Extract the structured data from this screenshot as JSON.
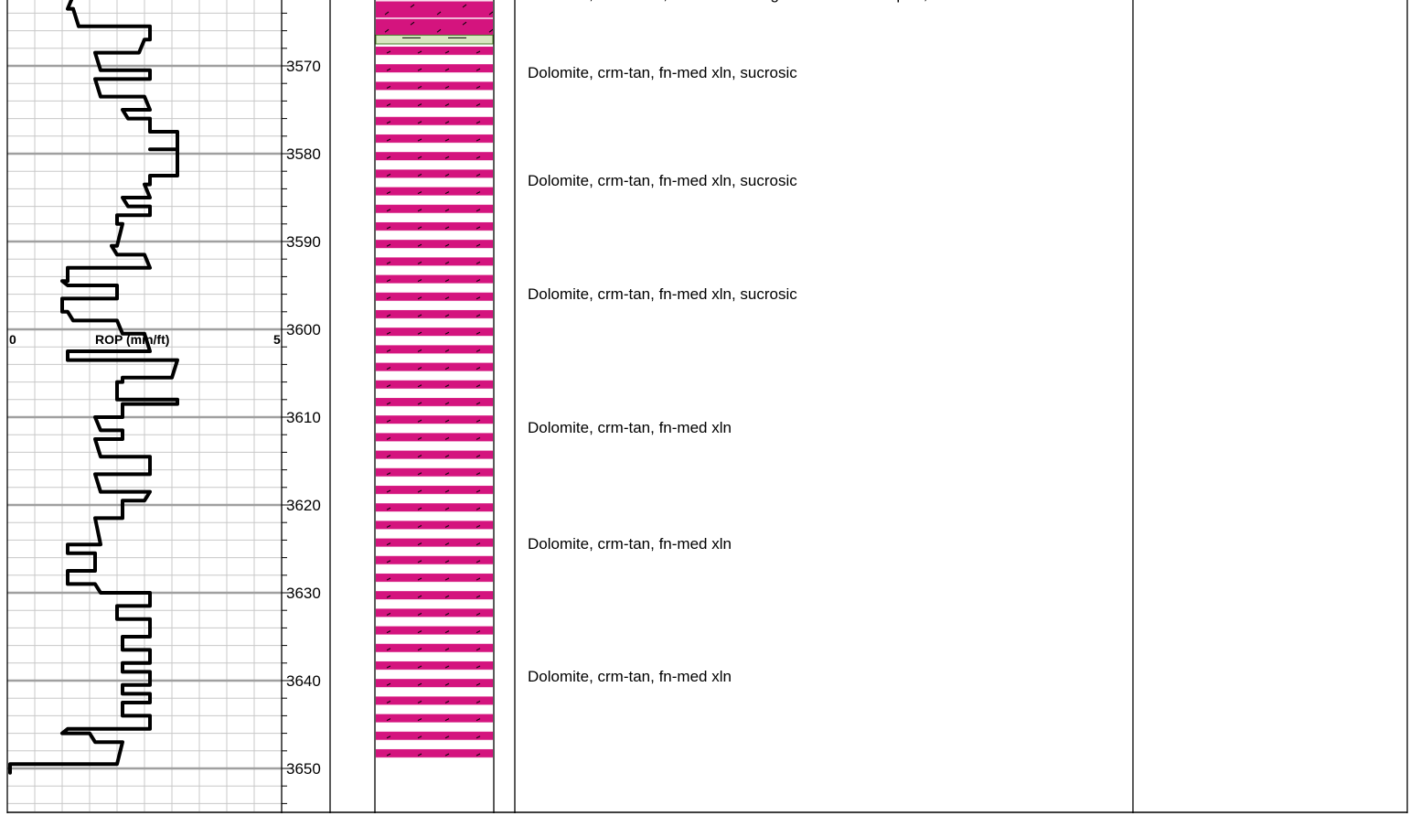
{
  "chart_data": {
    "type": "line",
    "title": "",
    "track_label": "ROP (min/ft)",
    "xlabel": "ROP (min/ft)",
    "ylabel": "",
    "xlim": [
      0,
      5
    ],
    "ylim": [
      3562,
      3657
    ],
    "x_tick_labels": [
      "0",
      "5"
    ],
    "depth_ticks": [
      "3570",
      "3580",
      "3590",
      "3600",
      "3610",
      "3620",
      "3630",
      "3640",
      "3650"
    ],
    "grid": true,
    "series": [
      {
        "depth": [
          3562,
          3563.5,
          3563.5,
          3565.5,
          3565.5,
          3567,
          3567,
          3568.5,
          3568.5,
          3570.5,
          3570.5,
          3571.5,
          3571.5,
          3573.5,
          3573.5,
          3575,
          3575,
          3576,
          3576,
          3577.5,
          3577.5,
          3579.5,
          3579.5,
          3579.5,
          3579.5,
          3582.5,
          3582.5,
          3583.5,
          3583.5,
          3585,
          3585,
          3586,
          3586,
          3587,
          3587,
          3588,
          3588,
          3590.5,
          3590.5,
          3591.5,
          3591.5,
          3593,
          3593,
          3594.5,
          3594.5,
          3595,
          3595,
          3596.5,
          3596.5,
          3598,
          3598,
          3599,
          3599,
          3600.5,
          3600.5,
          3602.5,
          3602.5,
          3603.5,
          3603.5,
          3605.5,
          3605.5,
          3606,
          3606,
          3608,
          3608,
          3608.5,
          3608.5,
          3610,
          3610,
          3611.5,
          3611.5,
          3612.5,
          3612.5,
          3614.5,
          3614.5,
          3616.5,
          3616.5,
          3618.5,
          3618.5,
          3619.5,
          3619.5,
          3621.5,
          3621.5,
          3624.5,
          3624.5,
          3625.5,
          3625.5,
          3627.5,
          3627.5,
          3629,
          3629,
          3630,
          3630,
          3631.5,
          3631.5,
          3633,
          3633,
          3635,
          3635,
          3636.5,
          3636.5,
          3638,
          3638,
          3639,
          3639,
          3640.5,
          3640.5,
          3641.5,
          3641.5,
          3642.5,
          3642.5,
          3644,
          3644,
          3645.5,
          3645.5,
          3646,
          3646,
          3647,
          3647,
          3649.5,
          3649.5,
          3650.5,
          3650.5,
          3657
        ],
        "rop": [
          1.2,
          1.1,
          1.2,
          1.3,
          2.6,
          2.6,
          2.5,
          2.4,
          1.6,
          1.7,
          2.6,
          2.6,
          1.6,
          1.7,
          2.5,
          2.6,
          2.1,
          2.2,
          2.6,
          2.6,
          3.1,
          3.1,
          2.6,
          2.6,
          3.1,
          3.1,
          2.6,
          2.6,
          2.5,
          2.6,
          2.1,
          2.2,
          2.6,
          2.6,
          2.0,
          2.0,
          2.1,
          2.0,
          1.9,
          2.0,
          2.5,
          2.6,
          1.1,
          1.1,
          1.0,
          1.1,
          2.0,
          2.0,
          1.0,
          1.0,
          1.1,
          1.2,
          2.0,
          2.1,
          2.5,
          2.6,
          1.1,
          1.1,
          3.1,
          3.0,
          2.1,
          2.1,
          2.0,
          2.0,
          3.1,
          3.1,
          2.1,
          2.1,
          1.6,
          1.7,
          2.1,
          2.1,
          1.6,
          1.7,
          2.6,
          2.6,
          1.6,
          1.7,
          2.6,
          2.5,
          2.1,
          2.1,
          1.6,
          1.7,
          1.1,
          1.1,
          1.6,
          1.6,
          1.1,
          1.1,
          1.6,
          1.7,
          2.6,
          2.6,
          2.0,
          2.0,
          2.6,
          2.6,
          2.1,
          2.1,
          2.6,
          2.6,
          2.1,
          2.1,
          2.6,
          2.6,
          2.1,
          2.1,
          2.6,
          2.6,
          2.1,
          2.1,
          2.6,
          2.6,
          1.1,
          1.0,
          1.5,
          1.6,
          2.1,
          2.0,
          0.05,
          0.05
        ]
      }
    ]
  },
  "lithology": {
    "dolomite_color": "#d4147e",
    "shale_color": "#d8e8c0",
    "shale_top": 3566.5,
    "shale_bottom": 3567.5,
    "dolomite_bottom": 3649
  },
  "descriptions": [
    {
      "depth": 3562.4,
      "text": "Dolomite, crm-lt brn, fnxln with fine grained sucroic in part, NS"
    },
    {
      "depth": 3571.4,
      "text": "Dolomite, crm-tan, fn-med xln, sucrosic"
    },
    {
      "depth": 3583.6,
      "text": "Dolomite, crm-tan, fn-med xln, sucrosic"
    },
    {
      "depth": 3596.6,
      "text": "Dolomite, crm-tan, fn-med xln, sucrosic"
    },
    {
      "depth": 3611.8,
      "text": "Dolomite, crm-tan, fn-med xln"
    },
    {
      "depth": 3625.0,
      "text": "Dolomite, crm-tan, fn-med xln"
    },
    {
      "depth": 3640.1,
      "text": "Dolomite, crm-tan, fn-med xln"
    }
  ],
  "colors": {
    "grid_minor": "#c8c8c8",
    "grid_major": "#a0a0a0",
    "curve": "#000000",
    "border": "#000000"
  }
}
